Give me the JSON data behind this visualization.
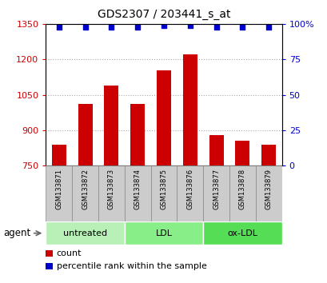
{
  "title": "GDS2307 / 203441_s_at",
  "samples": [
    "GSM133871",
    "GSM133872",
    "GSM133873",
    "GSM133874",
    "GSM133875",
    "GSM133876",
    "GSM133877",
    "GSM133878",
    "GSM133879"
  ],
  "counts": [
    840,
    1010,
    1090,
    1010,
    1155,
    1220,
    880,
    855,
    840
  ],
  "percentiles": [
    98,
    98,
    98,
    98,
    99,
    99,
    98,
    98,
    98
  ],
  "ymin": 750,
  "ymax": 1350,
  "yticks": [
    750,
    900,
    1050,
    1200,
    1350
  ],
  "right_yticks": [
    0,
    25,
    50,
    75,
    100
  ],
  "right_ylabels": [
    "0",
    "25",
    "50",
    "75",
    "100%"
  ],
  "bar_color": "#cc0000",
  "dot_color": "#0000cc",
  "groups": [
    {
      "label": "untreated",
      "start": 0,
      "end": 3,
      "color": "#b8f0b8"
    },
    {
      "label": "LDL",
      "start": 3,
      "end": 6,
      "color": "#88ee88"
    },
    {
      "label": "ox-LDL",
      "start": 6,
      "end": 9,
      "color": "#55dd55"
    }
  ],
  "agent_label": "agent",
  "legend_count_label": "count",
  "legend_pct_label": "percentile rank within the sample",
  "background_color": "#ffffff",
  "bar_bottom": 750,
  "sample_box_color": "#cccccc",
  "sample_box_edge": "#888888"
}
